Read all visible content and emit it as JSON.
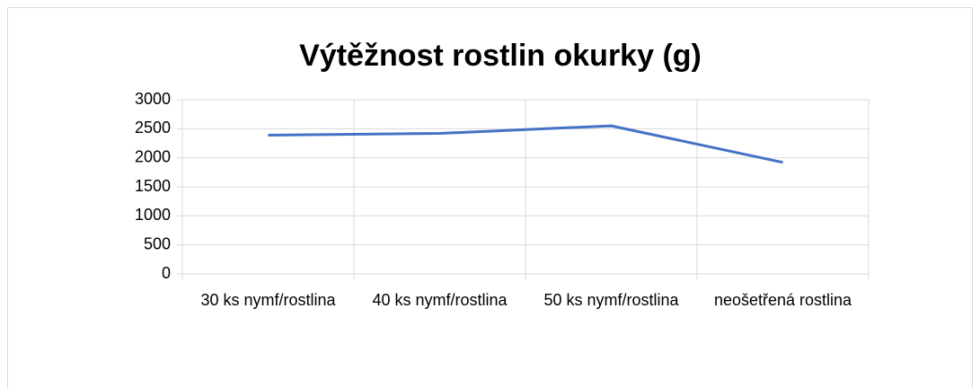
{
  "chart_data": {
    "type": "line",
    "title": "Výtěžnost rostlin okurky (g)",
    "categories": [
      "30 ks nymf/rostlina",
      "40 ks nymf/rostlina",
      "50 ks nymf/rostlina",
      "neošetřená rostlina"
    ],
    "values": [
      2390,
      2420,
      2550,
      1920
    ],
    "color": "#4472c4",
    "ylim": [
      0,
      3000
    ],
    "yticks": [
      0,
      500,
      1000,
      1500,
      2000,
      2500,
      3000
    ],
    "grid": true
  }
}
